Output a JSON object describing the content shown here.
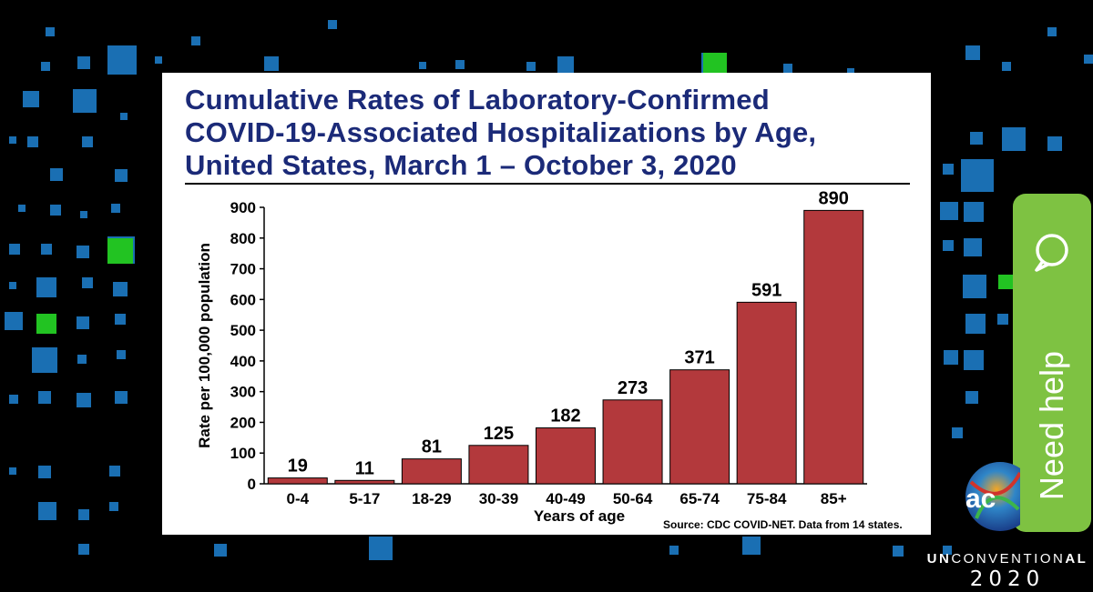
{
  "slide": {
    "title_lines": [
      "Cumulative Rates of Laboratory-Confirmed",
      "COVID-19-Associated Hospitalizations by Age,",
      "United States, March 1 – October 3, 2020"
    ],
    "source": "Source: CDC COVID-NET. Data from 14 states."
  },
  "chart_data": {
    "type": "bar",
    "title": "Cumulative Rates of Laboratory-Confirmed COVID-19-Associated Hospitalizations by Age, United States, March 1 – October 3, 2020",
    "xlabel": "Years of age",
    "ylabel": "Rate per 100,000 population",
    "categories": [
      "0-4",
      "5-17",
      "18-29",
      "30-39",
      "40-49",
      "50-64",
      "65-74",
      "75-84",
      "85+"
    ],
    "values": [
      19,
      11,
      81,
      125,
      182,
      273,
      371,
      591,
      890
    ],
    "data_labels": [
      "19",
      "11",
      "81",
      "125",
      "182",
      "273",
      "371",
      "591",
      "890"
    ],
    "ylim": [
      0,
      900
    ],
    "yticks": [
      0,
      100,
      200,
      300,
      400,
      500,
      600,
      700,
      800,
      900
    ],
    "grid": false,
    "bar_color": "#b3393c",
    "bar_outline": "#000000"
  },
  "help": {
    "label": "Need help",
    "icon": "chat-bubble-icon",
    "color": "#7ec242"
  },
  "branding": {
    "line_prefix": "UN",
    "line_middle": "CONVENTION",
    "line_suffix": "AL",
    "year": "2020",
    "logo": "acc-globe-logo"
  },
  "colors": {
    "title": "#1b2a78",
    "background": "#000000",
    "tile_blue": "#1a6fb3",
    "tile_green": "#22c322"
  }
}
